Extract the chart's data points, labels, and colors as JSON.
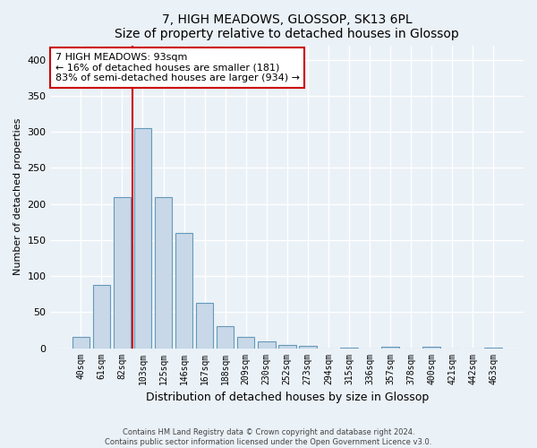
{
  "title": "7, HIGH MEADOWS, GLOSSOP, SK13 6PL",
  "subtitle": "Size of property relative to detached houses in Glossop",
  "xlabel": "Distribution of detached houses by size in Glossop",
  "ylabel": "Number of detached properties",
  "categories": [
    "40sqm",
    "61sqm",
    "82sqm",
    "103sqm",
    "125sqm",
    "146sqm",
    "167sqm",
    "188sqm",
    "209sqm",
    "230sqm",
    "252sqm",
    "273sqm",
    "294sqm",
    "315sqm",
    "336sqm",
    "357sqm",
    "378sqm",
    "400sqm",
    "421sqm",
    "442sqm",
    "463sqm"
  ],
  "values": [
    15,
    88,
    210,
    305,
    210,
    160,
    63,
    30,
    16,
    9,
    5,
    3,
    0,
    1,
    0,
    2,
    0,
    2,
    0,
    0,
    1
  ],
  "bar_color": "#c8d8e8",
  "bar_edge_color": "#6699bb",
  "background_color": "#eaf1f7",
  "grid_color": "#ffffff",
  "property_line_x": 2.5,
  "property_sqm": 93,
  "annotation_text_line1": "7 HIGH MEADOWS: 93sqm",
  "annotation_text_line2": "← 16% of detached houses are smaller (181)",
  "annotation_text_line3": "83% of semi-detached houses are larger (934) →",
  "red_line_color": "#cc0000",
  "annotation_box_color": "#ffffff",
  "annotation_box_edge": "#cc0000",
  "ylim": [
    0,
    420
  ],
  "yticks": [
    0,
    50,
    100,
    150,
    200,
    250,
    300,
    350,
    400
  ],
  "footer_line1": "Contains HM Land Registry data © Crown copyright and database right 2024.",
  "footer_line2": "Contains public sector information licensed under the Open Government Licence v3.0."
}
